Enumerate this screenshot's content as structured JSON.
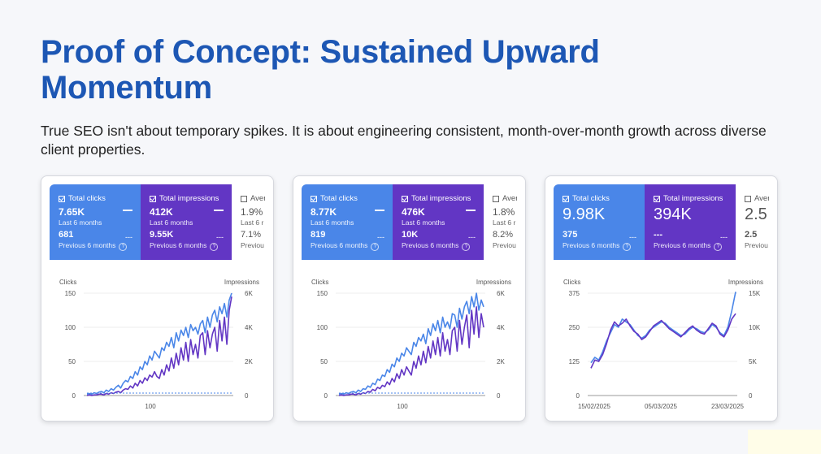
{
  "title": "Proof of Concept: Sustained Upward Momentum",
  "subtitle": "True SEO isn't about temporary spikes. It is about engineering consistent, month-over-month growth across diverse client properties.",
  "colors": {
    "clicks": "#4a86e8",
    "impressions": "#6236c4",
    "title": "#1d57b4"
  },
  "cards": [
    {
      "clicks": {
        "label": "Total clicks",
        "value": "7.65K",
        "period": "Last 6 months",
        "prev_value": "681",
        "prev_period": "Previous 6 months"
      },
      "impressions": {
        "label": "Total impressions",
        "value": "412K",
        "period": "Last 6 months",
        "prev_value": "9.55K",
        "prev_period": "Previous 6 months"
      },
      "ctr": {
        "label": "Aver",
        "value": "1.9%",
        "period": "Last 6 r",
        "prev_value": "7.1%",
        "prev_period": "Previou"
      }
    },
    {
      "clicks": {
        "label": "Total clicks",
        "value": "8.77K",
        "period": "Last 6 months",
        "prev_value": "819",
        "prev_period": "Previous 6 months"
      },
      "impressions": {
        "label": "Total impressions",
        "value": "476K",
        "period": "Last 6 months",
        "prev_value": "10K",
        "prev_period": "Previous 6 months"
      },
      "ctr": {
        "label": "Aver",
        "value": "1.8%",
        "period": "Last 6 r",
        "prev_value": "8.2%",
        "prev_period": "Previou"
      }
    },
    {
      "clicks": {
        "label": "Total clicks",
        "value": "9.98K",
        "period": "",
        "prev_value": "375",
        "prev_period": "Previous 6 months"
      },
      "impressions": {
        "label": "Total impressions",
        "value": "394K",
        "period": "",
        "prev_value": "---",
        "prev_period": "Previous 6 months"
      },
      "ctr": {
        "label": "Aver",
        "value": "2.5",
        "period": "",
        "prev_value": "2.5",
        "prev_period": "Previou"
      }
    }
  ],
  "chart_data": [
    {
      "type": "line",
      "ylabel_left": "Clicks",
      "ylabel_right": "Impressions",
      "yticks_left": [
        "150",
        "100",
        "50",
        "0"
      ],
      "yticks_right": [
        "6K",
        "4K",
        "2K",
        "0"
      ],
      "xtick_labels": [
        "100"
      ],
      "ylim_left": [
        0,
        150
      ],
      "ylim_right": [
        0,
        6000
      ],
      "series": [
        {
          "values": [
            2,
            3,
            2,
            4,
            3,
            5,
            6,
            4,
            8,
            6,
            10,
            8,
            12,
            15,
            11,
            18,
            22,
            20,
            28,
            25,
            35,
            30,
            42,
            38,
            50,
            45,
            58,
            52,
            65,
            60,
            55,
            70,
            66,
            78,
            72,
            85,
            70,
            92,
            80,
            96,
            88,
            100,
            85,
            104,
            95,
            100,
            90,
            105,
            110,
            92,
            115,
            100,
            118,
            125,
            108,
            130,
            120,
            135,
            115,
            140,
            150
          ]
        },
        {
          "values": [
            0,
            1,
            0,
            1,
            1,
            2,
            2,
            1,
            3,
            2,
            4,
            3,
            5,
            6,
            4,
            8,
            10,
            9,
            14,
            11,
            18,
            14,
            22,
            18,
            26,
            22,
            30,
            27,
            35,
            28,
            25,
            38,
            30,
            45,
            36,
            55,
            40,
            62,
            45,
            70,
            52,
            78,
            50,
            82,
            60,
            75,
            55,
            88,
            92,
            60,
            95,
            70,
            90,
            100,
            65,
            110,
            80,
            115,
            75,
            125,
            145
          ]
        }
      ]
    },
    {
      "type": "line",
      "ylabel_left": "Clicks",
      "ylabel_right": "Impressions",
      "yticks_left": [
        "150",
        "100",
        "50",
        "0"
      ],
      "yticks_right": [
        "6K",
        "4K",
        "2K",
        "0"
      ],
      "xtick_labels": [
        "100"
      ],
      "ylim_left": [
        0,
        150
      ],
      "ylim_right": [
        0,
        6000
      ],
      "series": [
        {
          "values": [
            2,
            3,
            2,
            4,
            3,
            5,
            6,
            4,
            8,
            6,
            10,
            9,
            14,
            12,
            18,
            16,
            24,
            22,
            30,
            28,
            38,
            34,
            46,
            42,
            55,
            50,
            62,
            58,
            70,
            65,
            60,
            78,
            72,
            85,
            80,
            90,
            76,
            98,
            88,
            105,
            95,
            110,
            92,
            115,
            100,
            108,
            98,
            120,
            118,
            100,
            128,
            112,
            130,
            138,
            120,
            145,
            130,
            150,
            125,
            140,
            130
          ]
        },
        {
          "values": [
            0,
            1,
            0,
            1,
            1,
            2,
            2,
            1,
            3,
            2,
            4,
            3,
            6,
            5,
            9,
            7,
            12,
            10,
            15,
            13,
            20,
            16,
            25,
            20,
            32,
            25,
            38,
            30,
            42,
            36,
            30,
            50,
            40,
            58,
            45,
            65,
            48,
            72,
            55,
            80,
            60,
            85,
            58,
            92,
            65,
            82,
            60,
            95,
            100,
            65,
            110,
            75,
            100,
            118,
            70,
            125,
            90,
            130,
            85,
            120,
            100
          ]
        }
      ]
    },
    {
      "type": "line",
      "ylabel_left": "Clicks",
      "ylabel_right": "Impressions",
      "yticks_left": [
        "375",
        "250",
        "125",
        "0"
      ],
      "yticks_right": [
        "15K",
        "10K",
        "5K",
        "0"
      ],
      "xtick_labels": [
        "15/02/2025",
        "05/03/2025",
        "23/03/2025"
      ],
      "ylim_left": [
        0,
        375
      ],
      "ylim_right": [
        0,
        15000
      ],
      "series": [
        {
          "values": [
            120,
            140,
            130,
            160,
            200,
            230,
            260,
            250,
            280,
            270,
            260,
            240,
            220,
            210,
            220,
            240,
            250,
            260,
            270,
            265,
            250,
            240,
            230,
            220,
            225,
            240,
            250,
            245,
            235,
            230,
            240,
            260,
            250,
            230,
            220,
            250,
            310,
            380
          ]
        },
        {
          "values": [
            100,
            130,
            125,
            150,
            190,
            240,
            270,
            255,
            265,
            280,
            255,
            235,
            225,
            205,
            215,
            235,
            255,
            265,
            275,
            260,
            245,
            235,
            225,
            215,
            230,
            245,
            255,
            240,
            230,
            225,
            245,
            265,
            255,
            225,
            215,
            240,
            280,
            300
          ]
        }
      ]
    }
  ]
}
